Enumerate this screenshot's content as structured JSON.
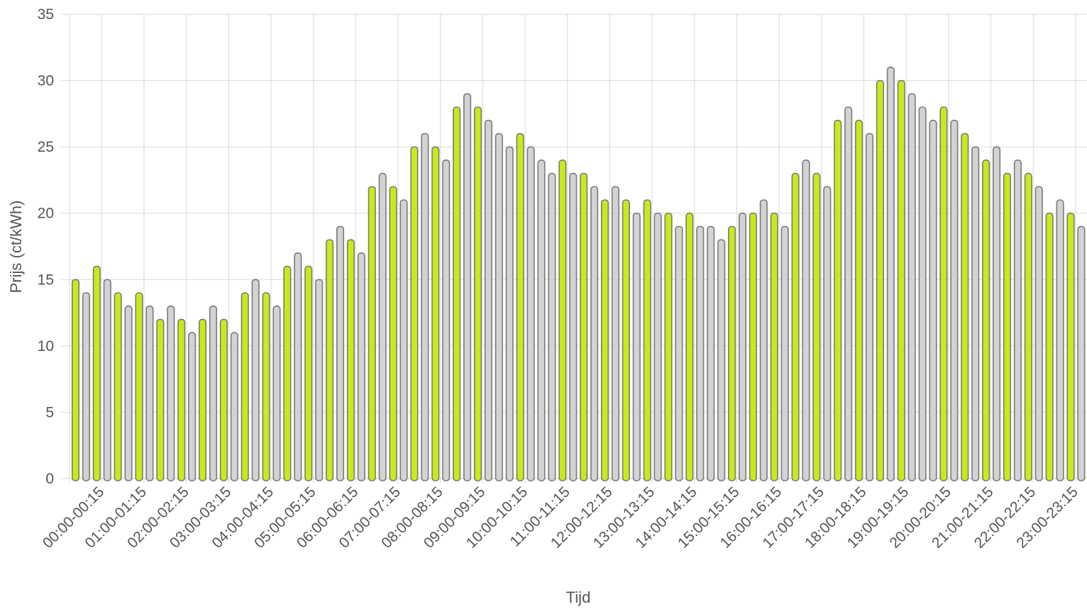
{
  "chart_data": {
    "type": "bar",
    "xlabel": "Tijd",
    "ylabel": "Prijs (ct/kWh)",
    "ylim": [
      0,
      35
    ],
    "yticks": [
      0,
      5,
      10,
      15,
      20,
      25,
      30,
      35
    ],
    "grid": true,
    "legend": "none",
    "colors": {
      "highlight": "#c8ea1a",
      "normal": "#d3d3d3",
      "border": "#7a7a7a",
      "grid": "#d9d9d9"
    },
    "tick_labels": [
      "00:00-00:15",
      "01:00-01:15",
      "02:00-02:15",
      "03:00-03:15",
      "04:00-04:15",
      "05:00-05:15",
      "06:00-06:15",
      "07:00-07:15",
      "08:00-08:15",
      "09:00-09:15",
      "10:00-10:15",
      "11:00-11:15",
      "12:00-12:15",
      "13:00-13:15",
      "14:00-14:15",
      "15:00-15:15",
      "16:00-16:15",
      "17:00-17:15",
      "18:00-18:15",
      "19:00-19:15",
      "20:00-20:15",
      "21:00-21:15",
      "22:00-22:15",
      "23:00-23:15"
    ],
    "values": [
      15,
      14,
      16,
      15,
      14,
      13,
      14,
      13,
      12,
      13,
      12,
      11,
      12,
      13,
      12,
      11,
      14,
      15,
      14,
      13,
      16,
      17,
      16,
      15,
      18,
      19,
      18,
      17,
      22,
      23,
      22,
      21,
      25,
      26,
      25,
      24,
      28,
      29,
      28,
      27,
      26,
      25,
      26,
      25,
      24,
      23,
      24,
      23,
      23,
      22,
      21,
      22,
      21,
      20,
      21,
      20,
      20,
      19,
      20,
      19,
      19,
      18,
      19,
      20,
      20,
      21,
      20,
      19,
      23,
      24,
      23,
      22,
      27,
      28,
      27,
      26,
      30,
      31,
      30,
      29,
      28,
      27,
      28,
      27,
      26,
      25,
      24,
      25,
      23,
      24,
      23,
      22,
      20,
      21,
      20,
      19
    ],
    "highlight": [
      true,
      false,
      true,
      false,
      true,
      false,
      true,
      false,
      true,
      false,
      true,
      false,
      true,
      false,
      true,
      false,
      true,
      false,
      true,
      false,
      true,
      false,
      true,
      false,
      true,
      false,
      true,
      false,
      true,
      false,
      true,
      false,
      true,
      false,
      true,
      false,
      true,
      false,
      true,
      false,
      false,
      false,
      true,
      false,
      false,
      false,
      true,
      false,
      true,
      false,
      true,
      false,
      true,
      false,
      true,
      false,
      true,
      false,
      true,
      false,
      false,
      false,
      true,
      false,
      true,
      false,
      true,
      false,
      true,
      false,
      true,
      false,
      true,
      false,
      true,
      false,
      true,
      false,
      true,
      false,
      false,
      false,
      true,
      false,
      true,
      false,
      true,
      false,
      true,
      false,
      true,
      false,
      true,
      false,
      true,
      false
    ]
  }
}
